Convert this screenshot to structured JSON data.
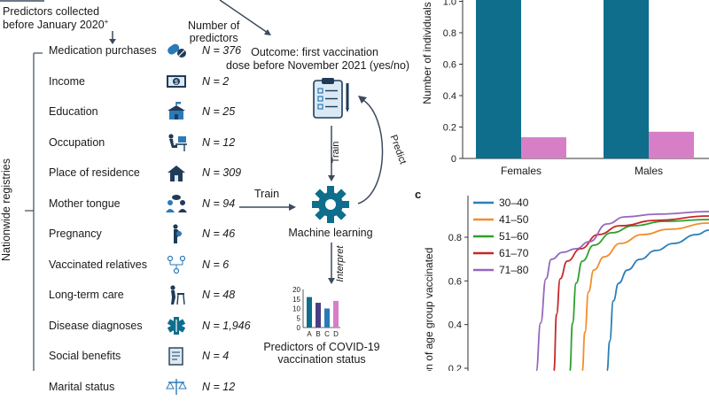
{
  "panel_a": {
    "collected_line1": "Predictors collected",
    "collected_line2": "before January 2020",
    "collected_mark": "+",
    "number_header_line1": "Number of",
    "number_header_line2": "predictors",
    "registries_label": "Nationwide registries",
    "predictors": [
      {
        "label": "Medication purchases",
        "n": "N = 376",
        "icon": "pills-icon"
      },
      {
        "label": "Income",
        "n": "N = 2",
        "icon": "money-icon"
      },
      {
        "label": "Education",
        "n": "N = 25",
        "icon": "school-icon"
      },
      {
        "label": "Occupation",
        "n": "N = 12",
        "icon": "desk-worker-icon"
      },
      {
        "label": "Place of residence",
        "n": "N = 309",
        "icon": "house-icon"
      },
      {
        "label": "Mother tongue",
        "n": "N = 94",
        "icon": "conversation-icon"
      },
      {
        "label": "Pregnancy",
        "n": "N = 46",
        "icon": "pregnant-icon"
      },
      {
        "label": "Vaccinated relatives",
        "n": "N = 6",
        "icon": "family-tree-icon"
      },
      {
        "label": "Long-term care",
        "n": "N = 48",
        "icon": "walker-icon"
      },
      {
        "label": "Disease diagnoses",
        "n": "N = 1,946",
        "icon": "medical-star-icon"
      },
      {
        "label": "Social benefits",
        "n": "N = 4",
        "icon": "document-icon"
      },
      {
        "label": "Marital status",
        "n": "N = 12",
        "icon": "scales-icon"
      }
    ],
    "outcome_line1": "Outcome: first vaccination",
    "outcome_line2": "dose before November 2021 (yes/no)",
    "train_label": "Train",
    "train_label_2": "Train",
    "predict_label": "Predict",
    "ml_label": "Machine learning",
    "interpret_label": "Interpret",
    "predictors_out_line1": "Predictors of COVID-19",
    "predictors_out_line2": "vaccination status",
    "mini_chart": {
      "categories": [
        "A",
        "B",
        "C",
        "D"
      ],
      "values": [
        16,
        13,
        10,
        14
      ],
      "yticks": [
        "20",
        "15",
        "10",
        "5",
        "0"
      ],
      "colors": [
        "#0e6e8c",
        "#4a3f86",
        "#2a7ab8",
        "#d67fc7"
      ]
    }
  },
  "chart_data": [
    {
      "type": "bar",
      "title": "",
      "ylabel": "Number of individuals",
      "ylim": [
        0,
        1.2
      ],
      "yticks": [
        "1.0",
        "0.8",
        "0.6",
        "0.4",
        "0.2",
        "0"
      ],
      "categories": [
        "Females",
        "Males"
      ],
      "series": [
        {
          "name": "teal",
          "color": "#0e6e8c",
          "values": [
            1.2,
            1.2
          ]
        },
        {
          "name": "pink",
          "color": "#d67fc7",
          "values": [
            0.135,
            0.17
          ]
        }
      ]
    },
    {
      "type": "line",
      "panel_letter": "c",
      "ylabel": "tion of age group vaccinated",
      "yticks": [
        "0.8",
        "0.6",
        "0.4",
        "0.2"
      ],
      "ylim": [
        0.16,
        0.96
      ],
      "series": [
        {
          "name": "30–40",
          "color": "#2c7fb8"
        },
        {
          "name": "41–50",
          "color": "#f28e2b"
        },
        {
          "name": "51–60",
          "color": "#2ca02c"
        },
        {
          "name": "61–70",
          "color": "#c62828"
        },
        {
          "name": "71–80",
          "color": "#9467bd"
        }
      ]
    }
  ]
}
